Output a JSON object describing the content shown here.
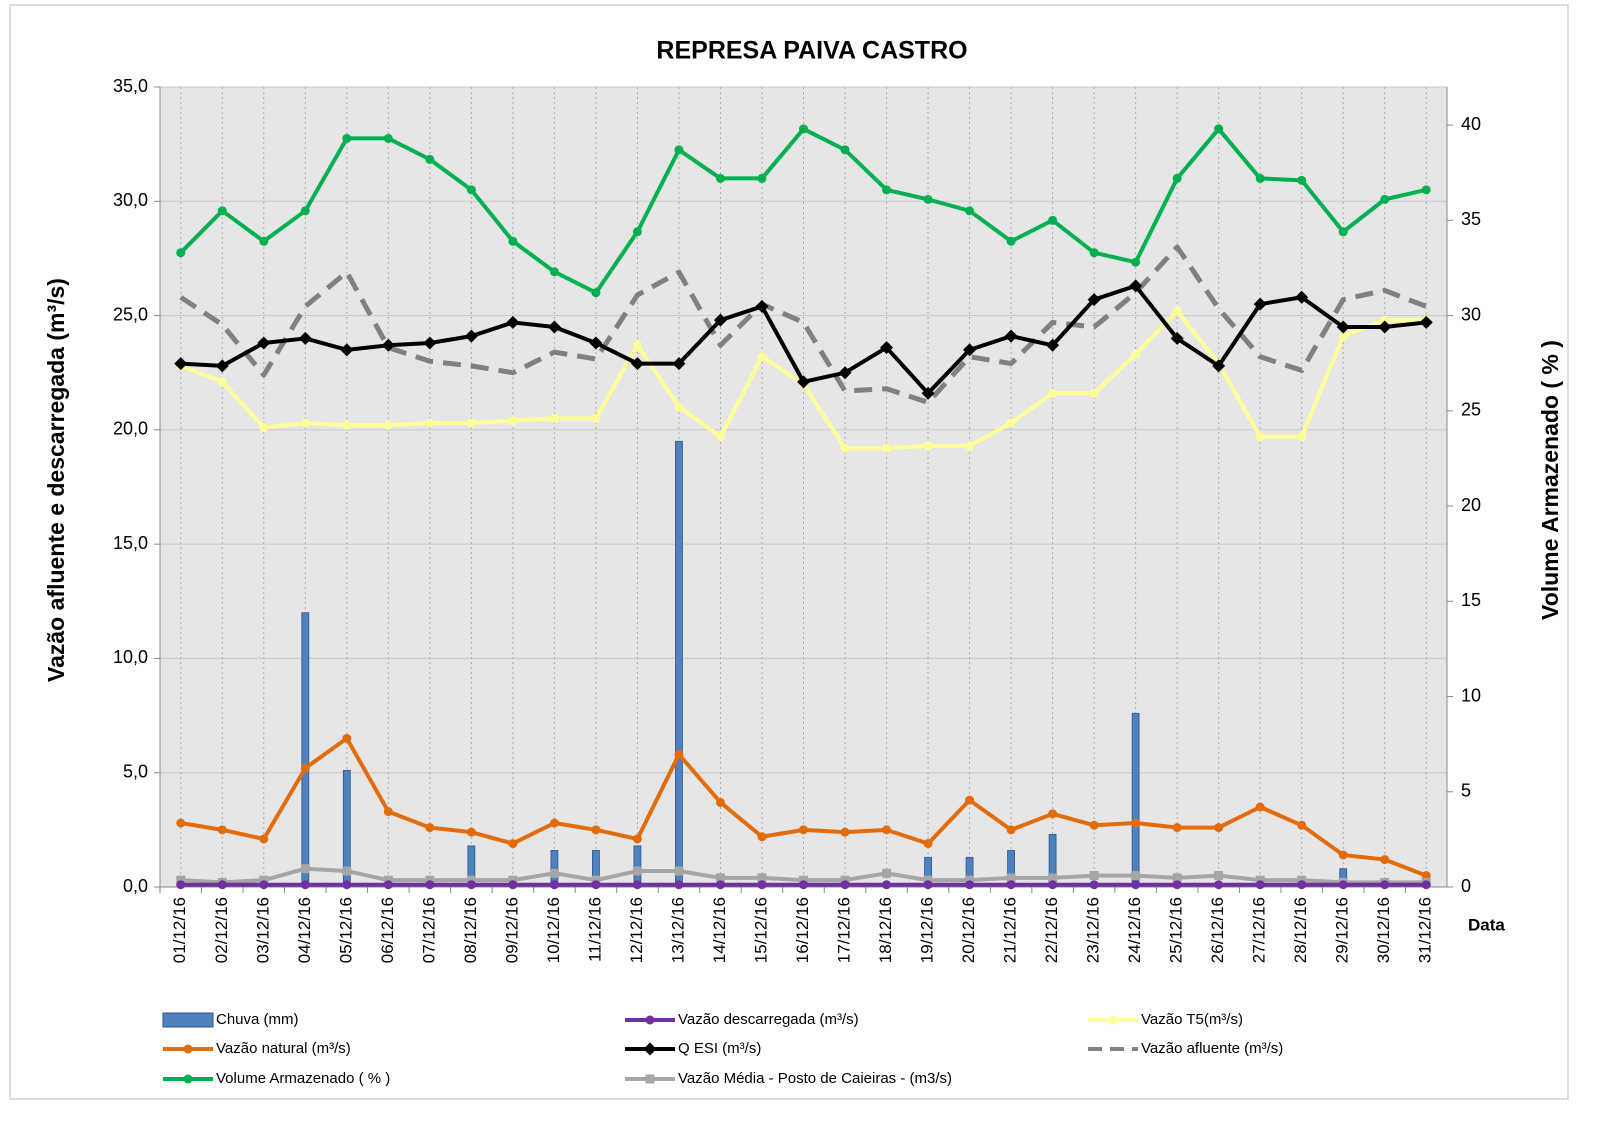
{
  "chart_data": {
    "type": "combo",
    "title": "REPRESA PAIVA CASTRO",
    "y_label": "Vazão afluente e descarregada (m³/s)",
    "y2_label": "Volume Armazenado ( % )",
    "x_label": "Data",
    "categories": [
      "01/12/16",
      "02/12/16",
      "03/12/16",
      "04/12/16",
      "05/12/16",
      "06/12/16",
      "07/12/16",
      "08/12/16",
      "09/12/16",
      "10/12/16",
      "11/12/16",
      "12/12/16",
      "13/12/16",
      "14/12/16",
      "15/12/16",
      "16/12/16",
      "17/12/16",
      "18/12/16",
      "19/12/16",
      "20/12/16",
      "21/12/16",
      "22/12/16",
      "23/12/16",
      "24/12/16",
      "25/12/16",
      "26/12/16",
      "27/12/16",
      "28/12/16",
      "29/12/16",
      "30/12/16",
      "31/12/16"
    ],
    "ylim": [
      0,
      35
    ],
    "yticks": [
      {
        "value": 0,
        "label": "0,0"
      },
      {
        "value": 5,
        "label": "5,0"
      },
      {
        "value": 10,
        "label": "10,0"
      },
      {
        "value": 15,
        "label": "15,0"
      },
      {
        "value": 20,
        "label": "20,0"
      },
      {
        "value": 25,
        "label": "25,0"
      },
      {
        "value": 30,
        "label": "30,0"
      },
      {
        "value": 35,
        "label": "35,0"
      }
    ],
    "y2lim": [
      0,
      42
    ],
    "y2ticks": [
      0,
      5,
      10,
      15,
      20,
      25,
      30,
      35,
      40
    ],
    "grid": true,
    "series": [
      {
        "name": "Chuva (mm)",
        "type": "bar",
        "color": "#4f81bd",
        "values": [
          0,
          0,
          0,
          12.0,
          5.1,
          0,
          0,
          1.8,
          0,
          1.6,
          1.6,
          1.8,
          19.5,
          0,
          0,
          0,
          0,
          0,
          1.3,
          1.3,
          1.6,
          2.3,
          0,
          7.6,
          0,
          0,
          0,
          0,
          0.8,
          0,
          0
        ]
      },
      {
        "name": "Vazão descarregada (m³/s)",
        "type": "line",
        "color": "#7030a0",
        "marker": "circle",
        "values": [
          0.1,
          0.1,
          0.1,
          0.1,
          0.1,
          0.1,
          0.1,
          0.1,
          0.1,
          0.1,
          0.1,
          0.1,
          0.1,
          0.1,
          0.1,
          0.1,
          0.1,
          0.1,
          0.1,
          0.1,
          0.1,
          0.1,
          0.1,
          0.1,
          0.1,
          0.1,
          0.1,
          0.1,
          0.1,
          0.1,
          0.1
        ]
      },
      {
        "name": "Vazão T5(m³/s)",
        "type": "line",
        "color": "#ffff99",
        "marker": "circle",
        "values": [
          22.8,
          22.1,
          20.1,
          20.3,
          20.2,
          20.2,
          20.3,
          20.3,
          20.4,
          20.5,
          20.5,
          23.7,
          21.0,
          19.7,
          23.2,
          22.0,
          19.2,
          19.2,
          19.3,
          19.3,
          20.3,
          21.6,
          21.6,
          23.3,
          25.2,
          22.9,
          19.7,
          19.7,
          24.1,
          24.8,
          24.8
        ]
      },
      {
        "name": "Vazão natural (m³/s)",
        "type": "line",
        "color": "#e36c0a",
        "marker": "circle",
        "values": [
          2.8,
          2.5,
          2.1,
          5.2,
          6.5,
          3.3,
          2.6,
          2.4,
          1.9,
          2.8,
          2.5,
          2.1,
          5.8,
          3.7,
          2.2,
          2.5,
          2.4,
          2.5,
          1.9,
          3.8,
          2.5,
          3.2,
          2.7,
          2.8,
          2.6,
          2.6,
          3.5,
          2.7,
          1.4,
          1.2,
          0.5
        ]
      },
      {
        "name": "Q ESI (m³/s)",
        "type": "line",
        "color": "#000000",
        "marker": "diamond",
        "values": [
          22.9,
          22.8,
          23.8,
          24.0,
          23.5,
          23.7,
          23.8,
          24.1,
          24.7,
          24.5,
          23.8,
          22.9,
          22.9,
          24.8,
          25.4,
          22.1,
          22.5,
          23.6,
          21.6,
          23.5,
          24.1,
          23.7,
          25.7,
          26.3,
          24.0,
          22.8,
          25.5,
          25.8,
          24.5,
          24.5,
          24.7
        ]
      },
      {
        "name": "Vazão afluente (m³/s)",
        "type": "line",
        "color": "#808080",
        "dash": true,
        "values": [
          25.8,
          24.6,
          22.4,
          25.4,
          26.9,
          23.6,
          23.0,
          22.8,
          22.5,
          23.4,
          23.1,
          25.9,
          26.9,
          23.7,
          25.5,
          24.7,
          21.7,
          21.8,
          21.2,
          23.2,
          22.9,
          24.7,
          24.5,
          26.0,
          28.0,
          25.3,
          23.2,
          22.6,
          25.7,
          26.1,
          25.4
        ]
      },
      {
        "name": "Volume Armazenado ( % )",
        "type": "line",
        "axis": "y2",
        "color": "#00b050",
        "marker": "circle",
        "values": [
          33.3,
          35.5,
          33.9,
          35.5,
          39.3,
          39.3,
          38.2,
          36.6,
          33.9,
          32.3,
          31.2,
          34.4,
          38.7,
          37.2,
          37.2,
          39.8,
          38.7,
          36.6,
          36.1,
          35.5,
          33.9,
          35.0,
          33.3,
          32.8,
          37.2,
          39.8,
          37.2,
          37.1,
          34.4,
          36.1,
          36.6
        ]
      },
      {
        "name": "Vazão Média - Posto de Caieiras - (m3/s)",
        "type": "line",
        "color": "#a6a6a6",
        "marker": "square",
        "values": [
          0.3,
          0.2,
          0.3,
          0.8,
          0.7,
          0.3,
          0.3,
          0.3,
          0.3,
          0.6,
          0.3,
          0.7,
          0.7,
          0.4,
          0.4,
          0.3,
          0.3,
          0.6,
          0.3,
          0.3,
          0.4,
          0.4,
          0.5,
          0.5,
          0.4,
          0.5,
          0.3,
          0.3,
          0.2,
          0.2,
          0.2
        ]
      }
    ]
  }
}
